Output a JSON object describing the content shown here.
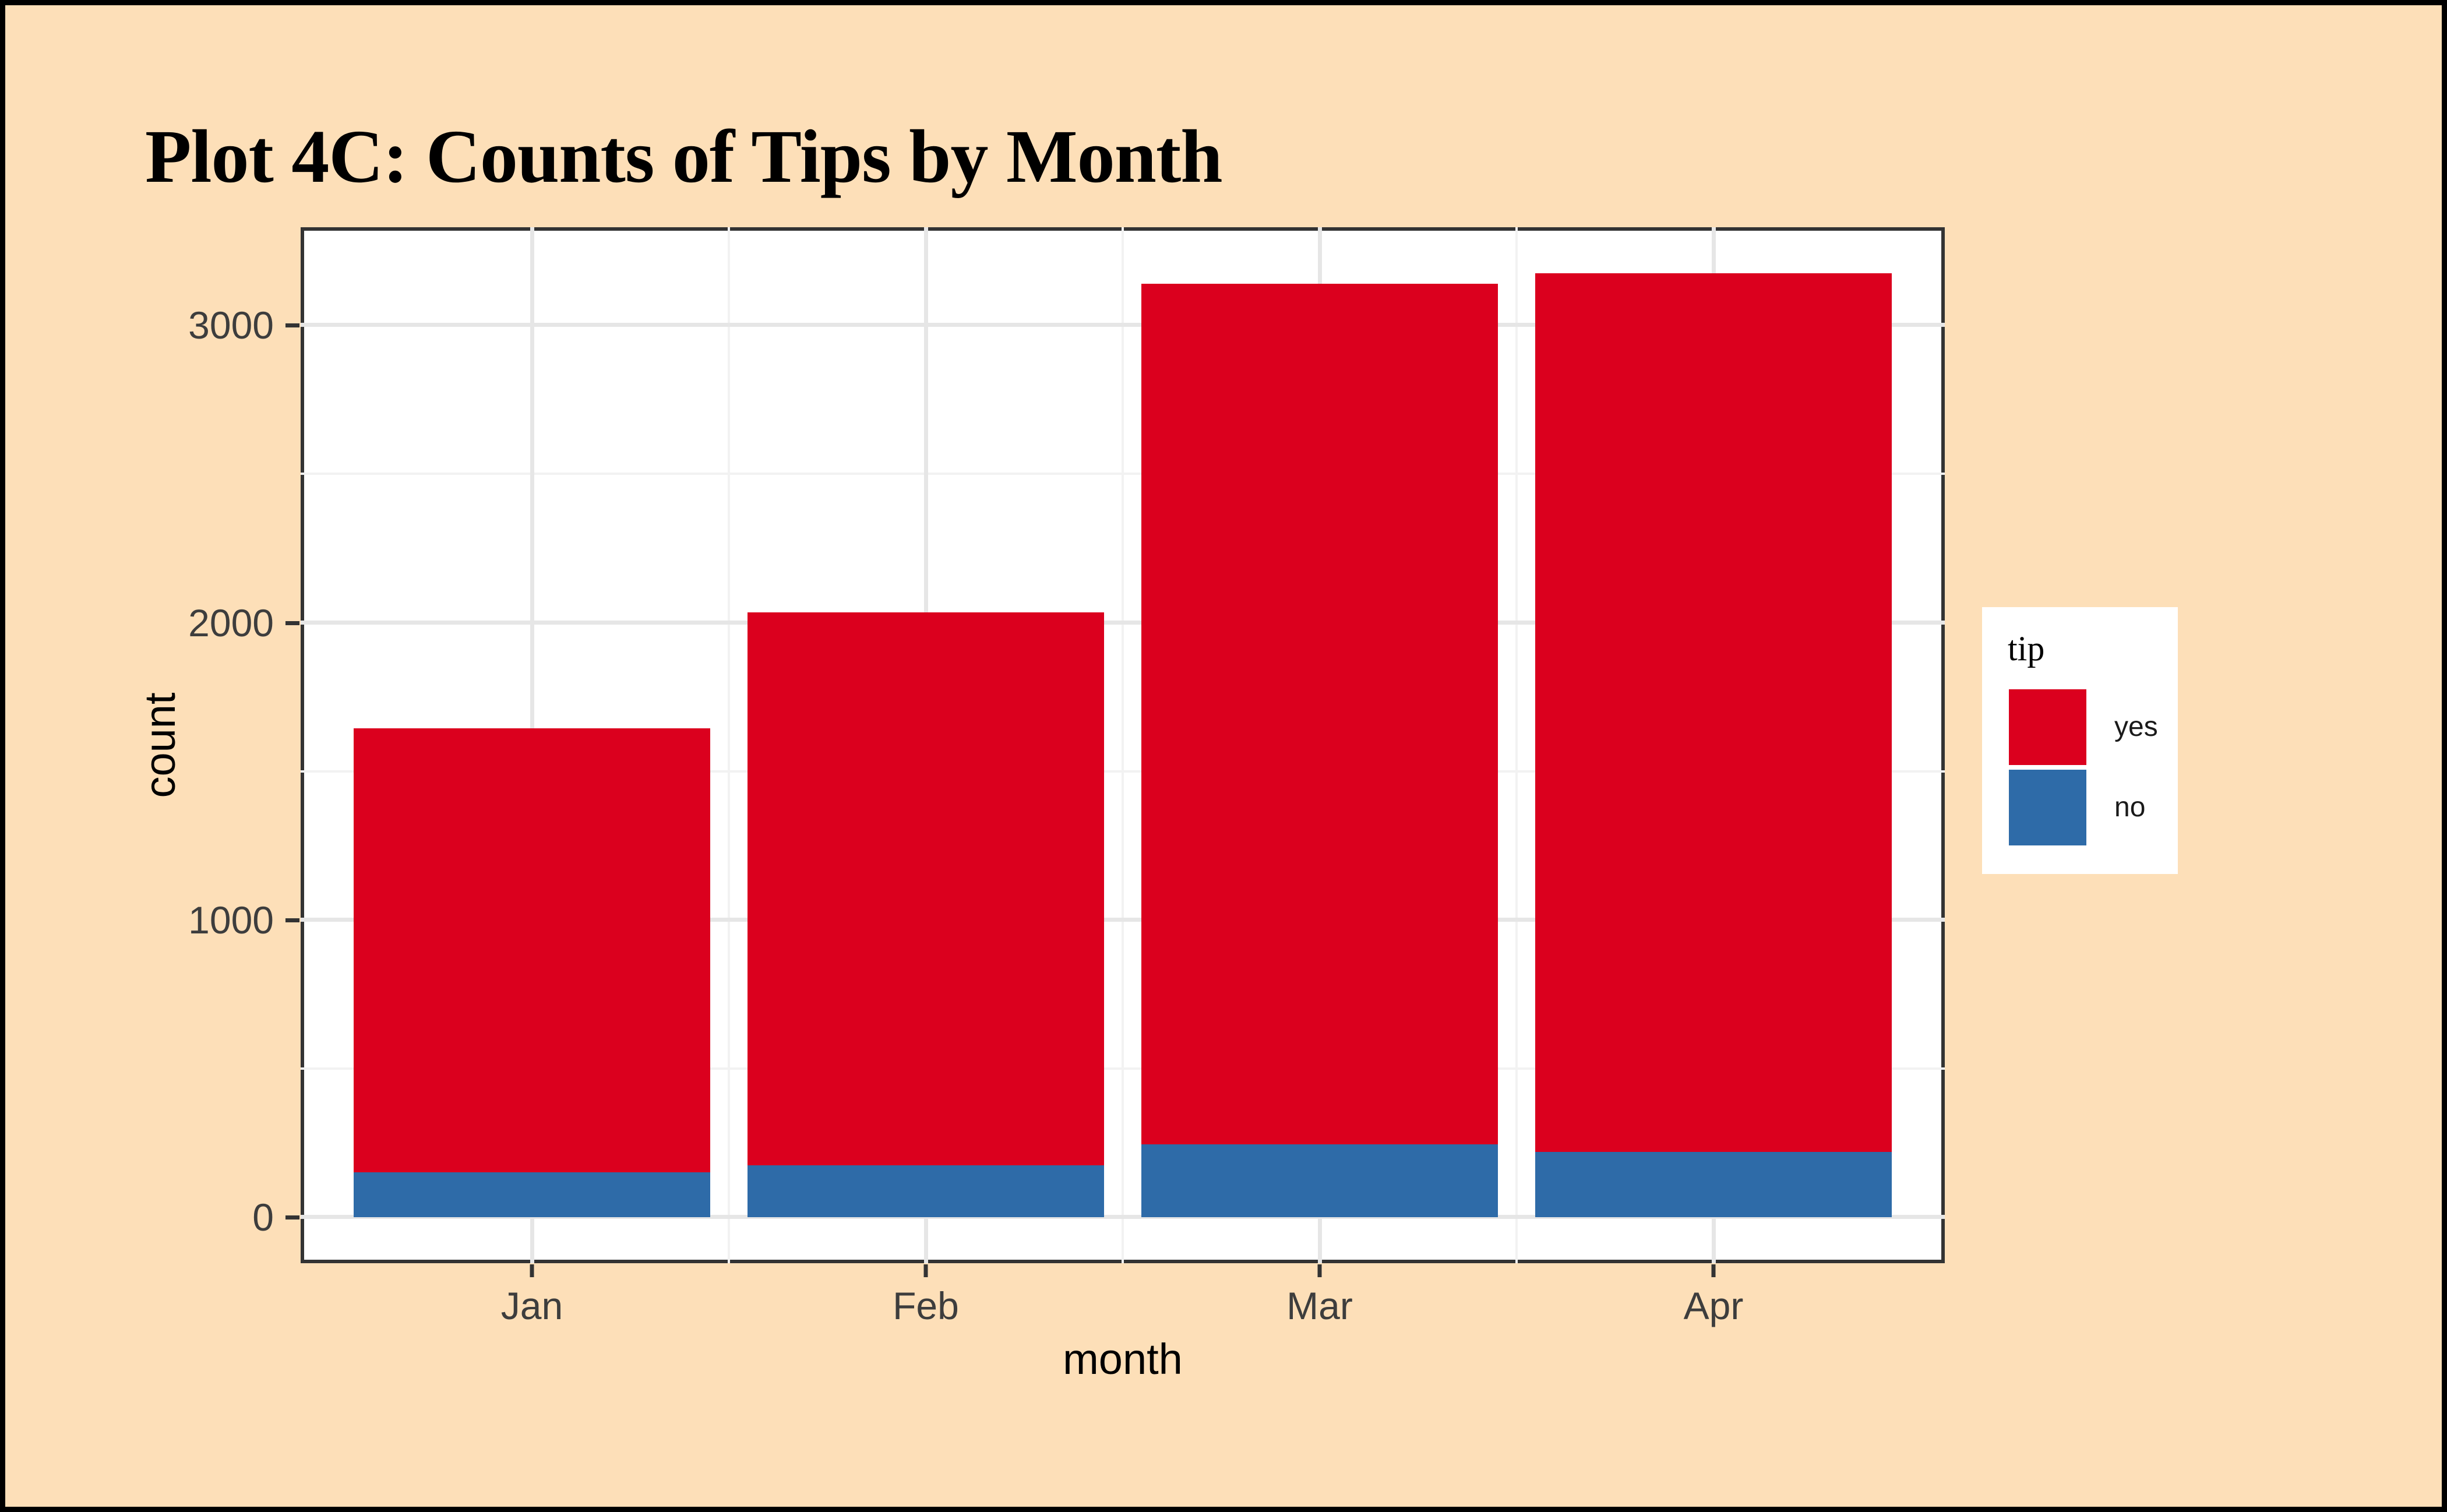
{
  "figure": {
    "background_color": "#FDDFB8",
    "outer_border_color": "#000000"
  },
  "chart_data": {
    "type": "bar",
    "stacked": true,
    "title": "Plot 4C: Counts of Tips by Month",
    "xlabel": "month",
    "ylabel": "count",
    "categories": [
      "Jan",
      "Feb",
      "Mar",
      "Apr"
    ],
    "series": [
      {
        "name": "no",
        "color": "#2E6BA8",
        "values": [
          150,
          175,
          245,
          220
        ]
      },
      {
        "name": "yes",
        "color": "#DB001E",
        "values": [
          1495,
          1860,
          2895,
          2955
        ]
      }
    ],
    "stack_order_bottom_to_top": [
      "no",
      "yes"
    ],
    "totals": [
      1645,
      2035,
      3140,
      3175
    ],
    "ylim": [
      -155,
      3330
    ],
    "yticks": [
      {
        "value": 0,
        "label": "0"
      },
      {
        "value": 1000,
        "label": "1000"
      },
      {
        "value": 2000,
        "label": "2000"
      },
      {
        "value": 3000,
        "label": "3000"
      }
    ],
    "yticks_minor": [
      500,
      1500,
      2500
    ],
    "grid": "on",
    "legend_position": "right",
    "legend": {
      "title": "tip",
      "items": [
        {
          "label": "yes",
          "color": "#DB001E"
        },
        {
          "label": "no",
          "color": "#2E6BA8"
        }
      ]
    },
    "layout": {
      "edge_fraction": 0.0209,
      "bar_width_fraction_of_band": 0.905
    }
  },
  "colors": {
    "panel_background": "#FFFFFF",
    "panel_border": "#333333",
    "grid_major": "#E6E6E6",
    "grid_minor": "#F2F2F2",
    "tick": "#333333",
    "tick_label": "#3D3D3D",
    "axis_title": "#000000",
    "title": "#000000",
    "legend_background": "#FFFFFF"
  }
}
